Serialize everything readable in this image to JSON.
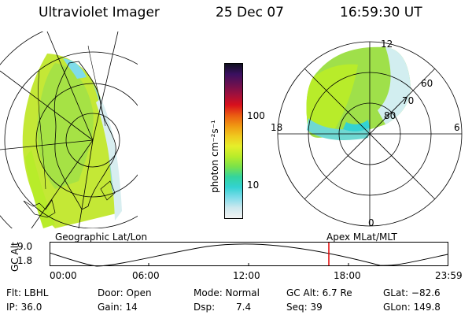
{
  "header": {
    "instrument": "Ultraviolet Imager",
    "date": "25 Dec 07",
    "time": "16:59:30 UT"
  },
  "panels": {
    "left_caption": "Geographic Lat/Lon",
    "right_caption": "Apex  MLat/MLT"
  },
  "colorbar": {
    "label": "photon cm⁻²s⁻¹",
    "ticks": [
      {
        "value": 100,
        "text": "100"
      },
      {
        "value": 10,
        "text": "10"
      }
    ],
    "colors": [
      "#f2f2f2",
      "#cde8ee",
      "#7fdcea",
      "#33d2d2",
      "#33d49e",
      "#7ae24a",
      "#b8ec2a",
      "#e6ee2a",
      "#f0c81e",
      "#f09612",
      "#ea5a12",
      "#d8101c",
      "#a0103c",
      "#6a1050",
      "#3a1060",
      "#101020"
    ]
  },
  "polar": {
    "mlt_labels": [
      "12",
      "18",
      "6",
      "0"
    ],
    "lat_labels": [
      "60",
      "70",
      "80"
    ]
  },
  "timeline": {
    "ylabel": "GC Alt",
    "yticks": [
      "9.0",
      "1.8"
    ],
    "xticks": [
      "00:00",
      "06:00",
      "12:00",
      "18:00",
      "23:59"
    ],
    "marker_time": "16:59"
  },
  "footer": {
    "flt": "Flt: LBHL",
    "ip": "IP: 36.0",
    "door": "Door: Open",
    "gain": "Gain: 14",
    "mode": "Mode: Normal",
    "dsp_label": "Dsp:",
    "dsp_value": "7.4",
    "gcalt": "GC Alt: 6.7 Re",
    "seq": "Seq: 39",
    "glat": "GLat: −82.6",
    "glon": "GLon: 149.8"
  }
}
